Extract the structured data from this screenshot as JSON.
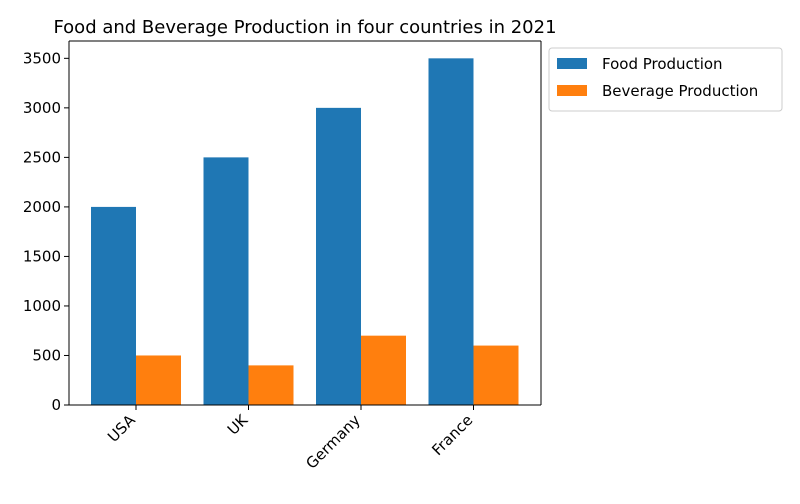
{
  "chart_data": {
    "type": "bar",
    "title": "Food and Beverage Production in four countries in 2021",
    "xlabel": "",
    "ylabel": "",
    "categories": [
      "USA",
      "UK",
      "Germany",
      "France"
    ],
    "series": [
      {
        "name": "Food Production",
        "values": [
          2000,
          2500,
          3000,
          3500
        ],
        "color": "#1f77b4"
      },
      {
        "name": "Beverage Production",
        "values": [
          500,
          400,
          700,
          600
        ],
        "color": "#ff7f0e"
      }
    ],
    "ylim": [
      0,
      3675
    ],
    "yticks": [
      0,
      500,
      1000,
      1500,
      2000,
      2500,
      3000,
      3500
    ],
    "grid": false,
    "legend_position": "outside-top-right"
  }
}
